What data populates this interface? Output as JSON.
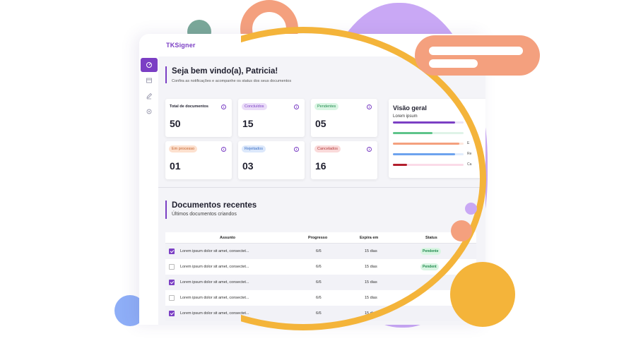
{
  "app": {
    "logo": "TKSigner"
  },
  "sidebar": {
    "items": [
      {
        "icon": "dashboard-icon",
        "active": true
      },
      {
        "icon": "inbox-icon",
        "active": false
      },
      {
        "icon": "pen-icon",
        "active": false
      },
      {
        "icon": "settings-icon",
        "active": false
      }
    ]
  },
  "welcome": {
    "title": "Seja bem vindo(a), Patricia!",
    "subtitle": "Confira as notificações e acompanhe os status dos seus documentos"
  },
  "cards": [
    {
      "label": "Total de documentos",
      "value": "50",
      "pill": false
    },
    {
      "label": "Concluídos",
      "value": "15",
      "pill": true,
      "bg": "#eadcf8",
      "fg": "#7b3fc4"
    },
    {
      "label": "Pendentes",
      "value": "05",
      "pill": true,
      "bg": "#d9f5e3",
      "fg": "#1f8a4c"
    },
    {
      "label": "Em processo",
      "value": "01",
      "pill": true,
      "bg": "#fde1cf",
      "fg": "#c2602a"
    },
    {
      "label": "Rejeitados",
      "value": "03",
      "pill": true,
      "bg": "#dce8fb",
      "fg": "#3b6fc4"
    },
    {
      "label": "Cancelados",
      "value": "16",
      "pill": true,
      "bg": "#fadada",
      "fg": "#b23a3a"
    }
  ],
  "overview": {
    "title": "Visão geral",
    "subtitle": "Lorem ipsum",
    "side_labels": [
      "E",
      "Re",
      "Ca"
    ],
    "bars": [
      {
        "color": "#7b3fc4",
        "fraction": 0.88
      },
      {
        "color": "#5ec48a",
        "fraction": 0.56
      },
      {
        "color": "#f4a07e",
        "fraction": 0.94
      },
      {
        "color": "#6da3ee",
        "fraction": 0.88
      },
      {
        "color": "#b21f2d",
        "fraction": 0.2
      }
    ]
  },
  "recent": {
    "title": "Documentos recentes",
    "subtitle": "Últimos documentos criandos"
  },
  "table": {
    "headers": {
      "subject": "Assunto",
      "progress": "Progresso",
      "expires": "Expira em",
      "status": "Status"
    },
    "rows": [
      {
        "checked": true,
        "subject": "Lorem ipsum dolor sit amet, consectet...",
        "progress": "6/6",
        "expires": "15 dias",
        "status": "Pendente"
      },
      {
        "checked": false,
        "subject": "Lorem ipsum dolor sit amet, consectet...",
        "progress": "6/6",
        "expires": "15 dias",
        "status": "Pendent"
      },
      {
        "checked": true,
        "subject": "Lorem ipsum dolor sit amet, consectet...",
        "progress": "6/6",
        "expires": "15 dias",
        "status": ""
      },
      {
        "checked": false,
        "subject": "Lorem ipsum dolor sit amet, consectet...",
        "progress": "6/6",
        "expires": "15 dias",
        "status": ""
      },
      {
        "checked": true,
        "subject": "Lorem ipsum dolor sit amet, consectet...",
        "progress": "6/6",
        "expires": "15 dias",
        "status": ""
      }
    ]
  },
  "colors": {
    "accent": "#7b3fc4",
    "ring": "#f4b43a",
    "lavender": "#c9a8f5",
    "peach": "#f4a07e",
    "teal": "#7aa899",
    "blue": "#8eaef7"
  }
}
